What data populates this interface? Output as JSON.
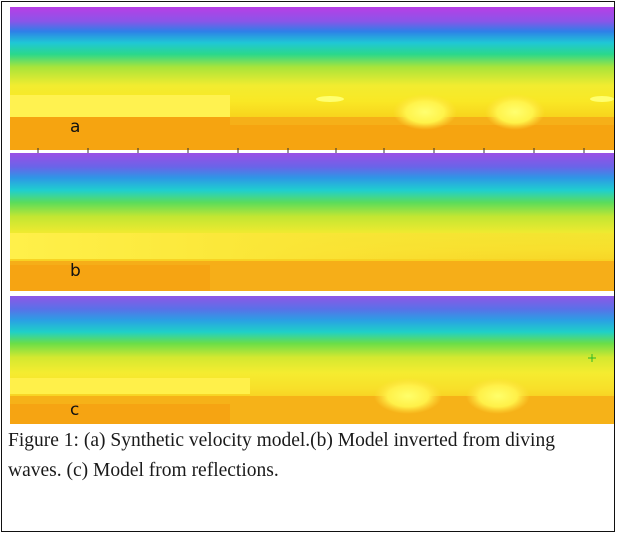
{
  "figure": {
    "panels": [
      {
        "id": "a",
        "label": "a",
        "description_hidden": true
      },
      {
        "id": "b",
        "label": "b"
      },
      {
        "id": "c",
        "label": "c"
      }
    ],
    "caption": "Figure 1:  (a) Synthetic velocity model.(b) Model inverted from diving waves. (c) Model from reflections.",
    "colors": {
      "top": "#b23fe6",
      "blue": "#1e8fe8",
      "cyan": "#1ed2d2",
      "green": "#7fdc2a",
      "yellow": "#f5f02a",
      "bright_yellow": "#ffff5a",
      "orange": "#f6a410"
    }
  }
}
